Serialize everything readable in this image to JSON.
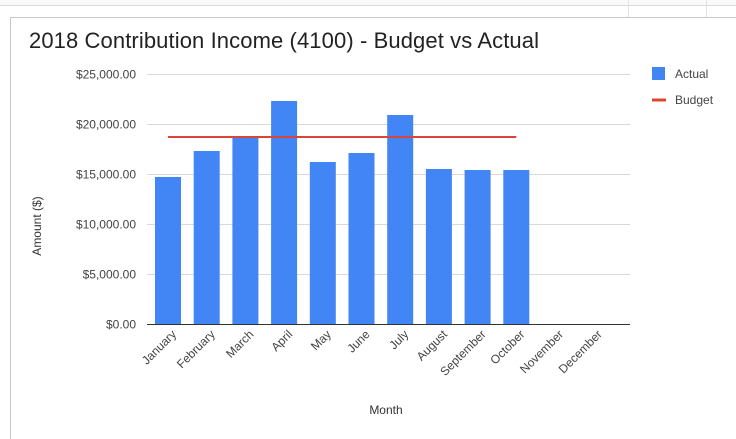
{
  "chart_data": {
    "type": "bar",
    "title": "2018 Contribution Income (4100)  - Budget vs Actual",
    "xlabel": "Month",
    "ylabel": "Amount ($)",
    "ylim": [
      0,
      25000
    ],
    "yticks": [
      0,
      5000,
      10000,
      15000,
      20000,
      25000
    ],
    "ytick_labels": [
      "$0.00",
      "$5,000.00",
      "$10,000.00",
      "$15,000.00",
      "$20,000.00",
      "$25,000.00"
    ],
    "categories": [
      "January",
      "February",
      "March",
      "April",
      "May",
      "June",
      "July",
      "August",
      "September",
      "October",
      "November",
      "December"
    ],
    "grid": true,
    "legend_position": "top-right",
    "series": [
      {
        "name": "Actual",
        "type": "bar",
        "color": "#4285f4",
        "values": [
          14700,
          17300,
          18600,
          22300,
          16200,
          17100,
          20900,
          15500,
          15400,
          15400,
          null,
          null
        ]
      },
      {
        "name": "Budget",
        "type": "line",
        "color": "#db4437",
        "values": [
          18700,
          18700,
          18700,
          18700,
          18700,
          18700,
          18700,
          18700,
          18700,
          18700,
          null,
          null
        ]
      }
    ]
  }
}
